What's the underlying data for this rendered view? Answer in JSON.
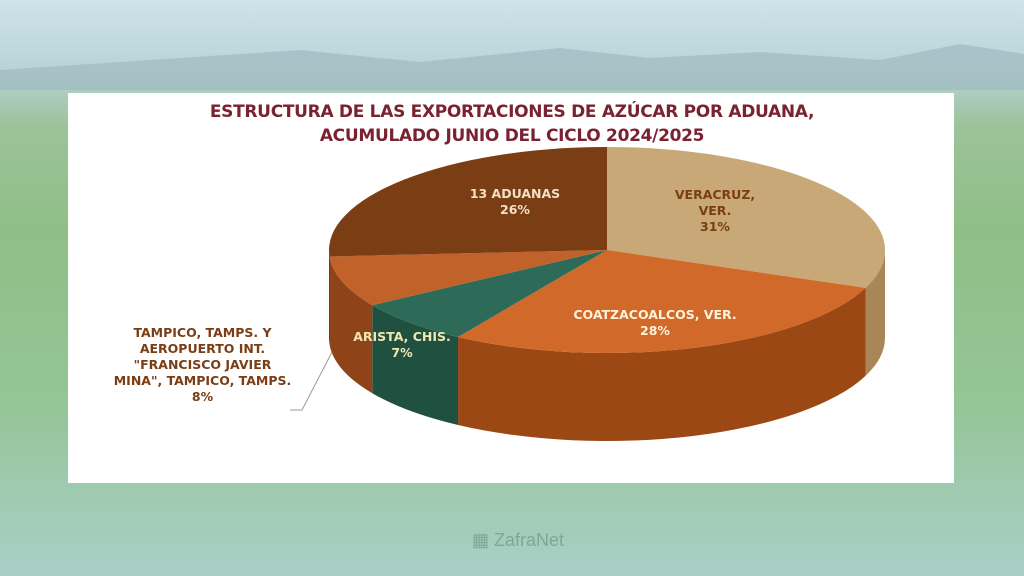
{
  "chart_data": {
    "type": "pie",
    "title": "ESTRUCTURA DE LAS EXPORTACIONES DE AZÚCAR POR ADUANA, ACUMULADO JUNIO DEL CICLO 2024/2025",
    "title_line1": "ESTRUCTURA DE LAS EXPORTACIONES DE AZÚCAR POR ADUANA,",
    "title_line2": "ACUMULADO JUNIO DEL CICLO 2024/2025",
    "slices": [
      {
        "name": "VERACRUZ, VER.",
        "line1": "VERACRUZ,",
        "line2": "VER.",
        "value": 31,
        "label": "31%",
        "color": "#c9a878",
        "side": "#a88658"
      },
      {
        "name": "COATZACOALCOS, VER.",
        "line1": "COATZACOALCOS, VER.",
        "value": 28,
        "label": "28%",
        "color": "#d0692a",
        "side": "#9c4814"
      },
      {
        "name": "ARISTA, CHIS.",
        "line1": "ARISTA, CHIS.",
        "value": 7,
        "label": "7%",
        "color": "#2d6b58",
        "side": "#1f5040"
      },
      {
        "name": "TAMPICO, TAMPS. Y AEROPUERTO INT. \"FRANCISCO JAVIER MINA\", TAMPICO, TAMPS.",
        "lines": [
          "TAMPICO, TAMPS. Y",
          "AEROPUERTO INT.",
          "\"FRANCISCO JAVIER",
          "MINA\", TAMPICO, TAMPS."
        ],
        "value": 8,
        "label": "8%",
        "color": "#c0622a",
        "side": "#8f4318"
      },
      {
        "name": "13 ADUANAS",
        "line1": "13 ADUANAS",
        "value": 26,
        "label": "26%",
        "color": "#7b3d14",
        "side": "#5a2a0c"
      }
    ]
  },
  "watermark": "ZafraNet"
}
